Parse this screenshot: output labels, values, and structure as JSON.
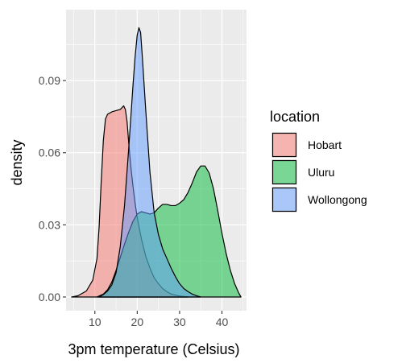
{
  "chart_data": {
    "type": "area",
    "xlabel": "3pm temperature (Celsius)",
    "ylabel": "density",
    "xlim": [
      3.2,
      45.8
    ],
    "ylim": [
      -0.0057,
      0.1195
    ],
    "x_ticks": [
      10,
      20,
      30,
      40
    ],
    "y_ticks": [
      0.0,
      0.03,
      0.06,
      0.09
    ],
    "x_tick_labels": [
      "10",
      "20",
      "30",
      "40"
    ],
    "y_tick_labels": [
      "0.00",
      "0.03",
      "0.06",
      "0.09"
    ],
    "grid": true,
    "legend": {
      "title": "location",
      "position": "right"
    },
    "series": [
      {
        "name": "Hobart",
        "color": "#F8766D",
        "points": [
          [
            4.5,
            0.0
          ],
          [
            6,
            0.0005
          ],
          [
            8,
            0.0025
          ],
          [
            9.5,
            0.007
          ],
          [
            10.5,
            0.016
          ],
          [
            11,
            0.029
          ],
          [
            11.5,
            0.048
          ],
          [
            12,
            0.065
          ],
          [
            12.5,
            0.074
          ],
          [
            13,
            0.076
          ],
          [
            14,
            0.077
          ],
          [
            15,
            0.0775
          ],
          [
            16,
            0.078
          ],
          [
            16.8,
            0.0795
          ],
          [
            17.2,
            0.078
          ],
          [
            17.6,
            0.073
          ],
          [
            18,
            0.064
          ],
          [
            18.5,
            0.054
          ],
          [
            19,
            0.046
          ],
          [
            19.5,
            0.039
          ],
          [
            20,
            0.033
          ],
          [
            21,
            0.024
          ],
          [
            22,
            0.017
          ],
          [
            23,
            0.012
          ],
          [
            24,
            0.008
          ],
          [
            25,
            0.0055
          ],
          [
            26,
            0.0035
          ],
          [
            27,
            0.0022
          ],
          [
            28,
            0.0012
          ],
          [
            30,
            0.0004
          ],
          [
            32,
            0.0
          ]
        ]
      },
      {
        "name": "Uluru",
        "color": "#00BA38",
        "points": [
          [
            10.5,
            0.0
          ],
          [
            12,
            0.0012
          ],
          [
            13,
            0.003
          ],
          [
            14,
            0.0062
          ],
          [
            15,
            0.011
          ],
          [
            16,
            0.0165
          ],
          [
            17,
            0.022
          ],
          [
            18,
            0.027
          ],
          [
            19,
            0.0315
          ],
          [
            20,
            0.0345
          ],
          [
            21,
            0.0355
          ],
          [
            22,
            0.035
          ],
          [
            23,
            0.0345
          ],
          [
            24,
            0.035
          ],
          [
            25,
            0.037
          ],
          [
            26,
            0.0385
          ],
          [
            27,
            0.0385
          ],
          [
            28,
            0.038
          ],
          [
            29,
            0.038
          ],
          [
            30,
            0.039
          ],
          [
            31,
            0.0405
          ],
          [
            32,
            0.0435
          ],
          [
            33,
            0.0475
          ],
          [
            34,
            0.052
          ],
          [
            35,
            0.0545
          ],
          [
            36,
            0.0545
          ],
          [
            37,
            0.0515
          ],
          [
            38,
            0.045
          ],
          [
            39,
            0.036
          ],
          [
            40,
            0.0265
          ],
          [
            41,
            0.018
          ],
          [
            42,
            0.011
          ],
          [
            43,
            0.0055
          ],
          [
            44,
            0.0015
          ],
          [
            44.5,
            0.0
          ]
        ]
      },
      {
        "name": "Wollongong",
        "color": "#619CFF",
        "points": [
          [
            11,
            0.0
          ],
          [
            12,
            0.001
          ],
          [
            13,
            0.0025
          ],
          [
            14,
            0.005
          ],
          [
            15,
            0.01
          ],
          [
            16,
            0.021
          ],
          [
            17,
            0.038
          ],
          [
            18,
            0.062
          ],
          [
            19,
            0.088
          ],
          [
            19.5,
            0.1
          ],
          [
            20,
            0.109
          ],
          [
            20.4,
            0.112
          ],
          [
            20.8,
            0.11
          ],
          [
            21.2,
            0.1
          ],
          [
            22,
            0.078
          ],
          [
            23,
            0.052
          ],
          [
            24,
            0.035
          ],
          [
            25,
            0.026
          ],
          [
            26,
            0.02
          ],
          [
            27,
            0.016
          ],
          [
            28,
            0.012
          ],
          [
            29,
            0.0085
          ],
          [
            30,
            0.0055
          ],
          [
            31,
            0.0035
          ],
          [
            32,
            0.0022
          ],
          [
            33,
            0.0012
          ],
          [
            34,
            0.0005
          ],
          [
            35,
            0.0
          ]
        ]
      }
    ]
  }
}
